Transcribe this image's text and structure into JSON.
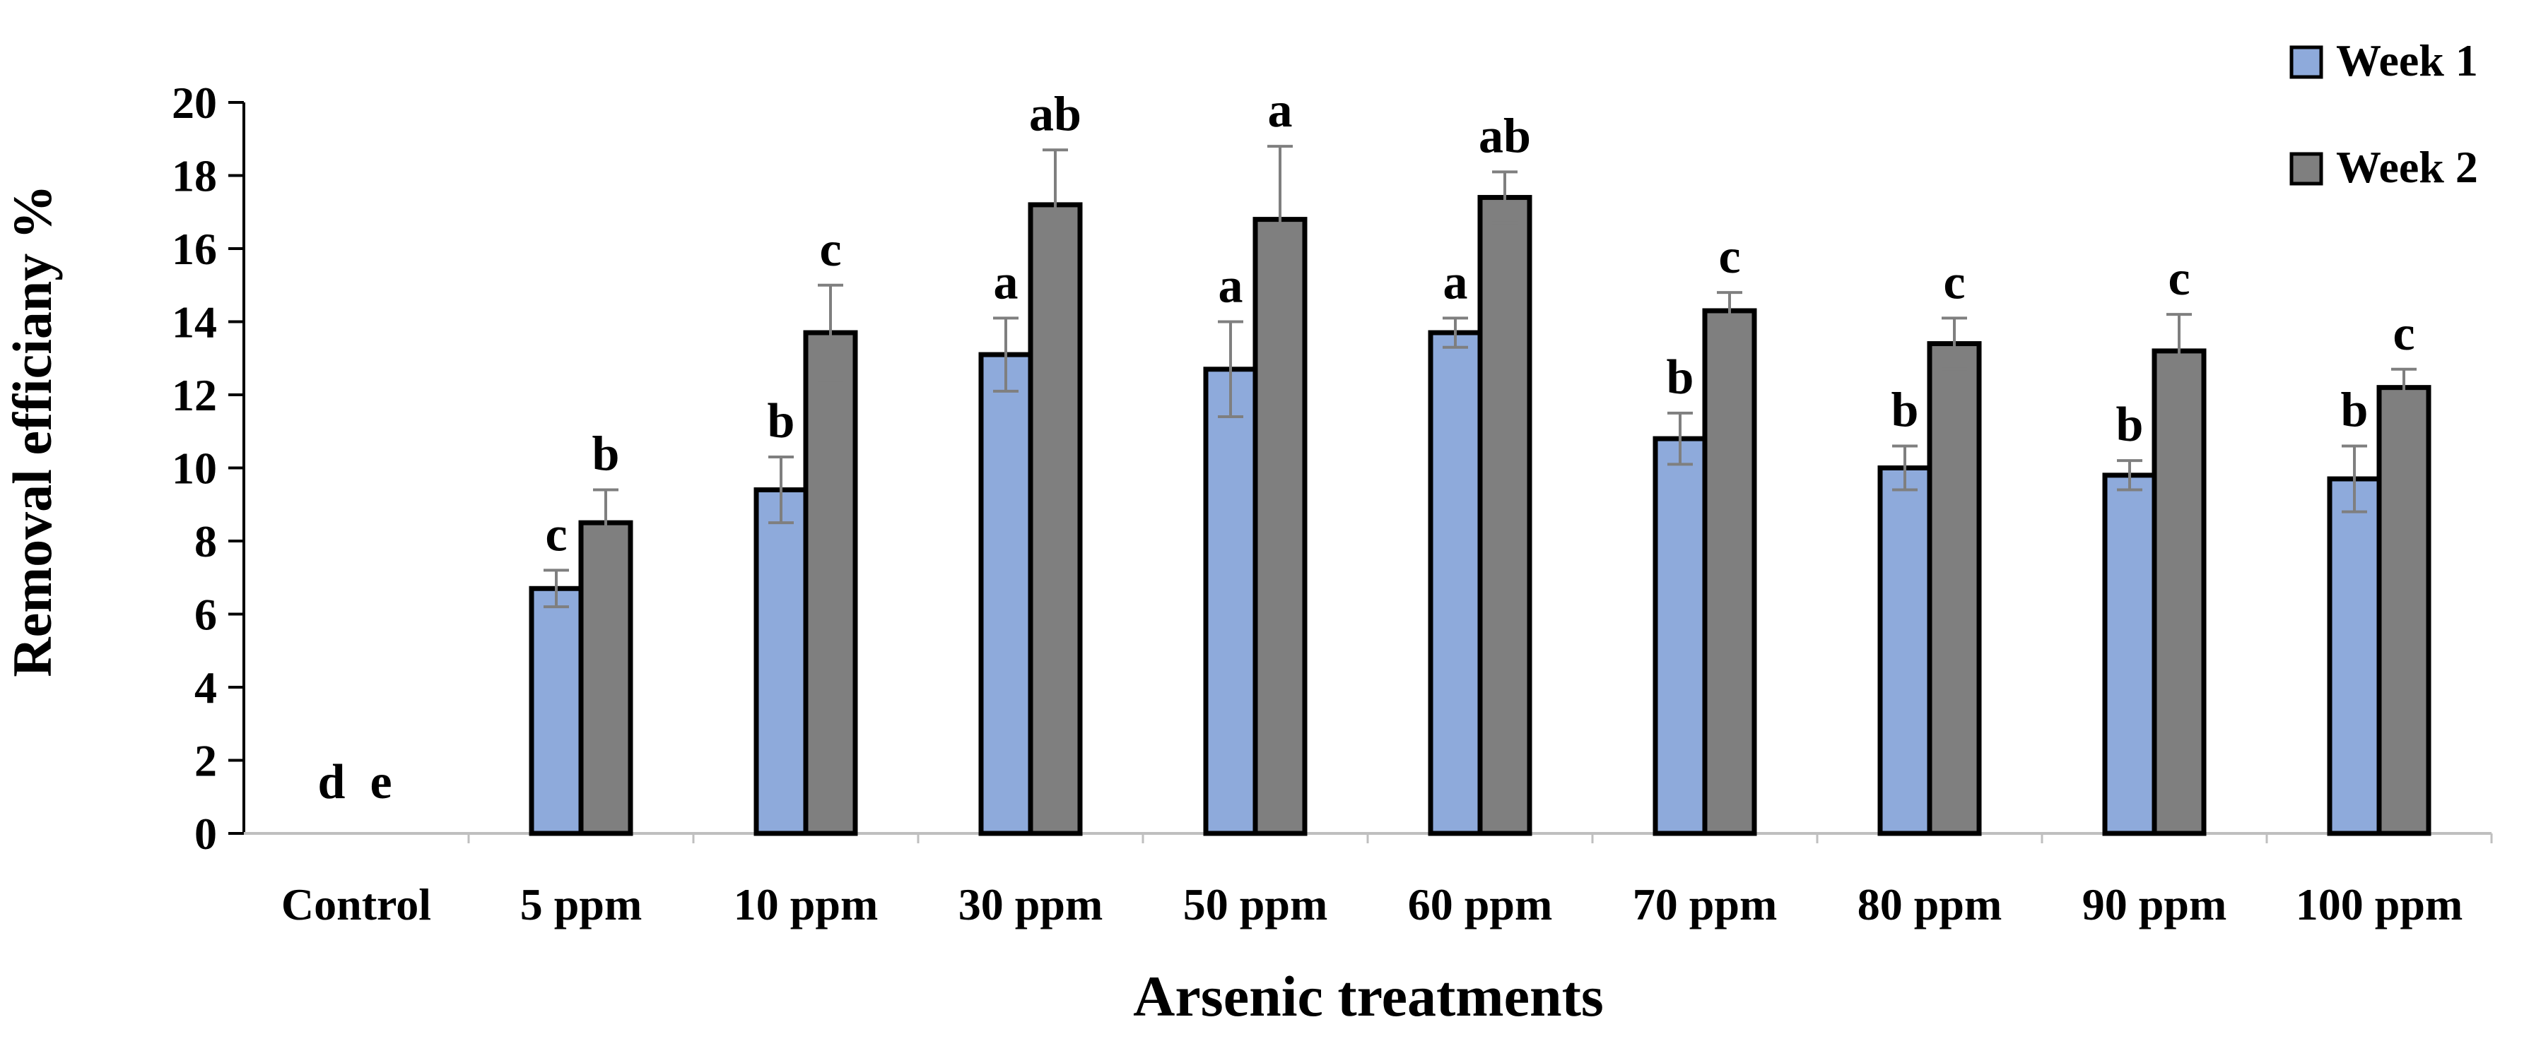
{
  "chart_data": {
    "type": "bar",
    "title": "",
    "xlabel": "Arsenic treatments",
    "ylabel": "Removal efficiany %",
    "ylim": [
      0,
      20
    ],
    "yticks": [
      0,
      2,
      4,
      6,
      8,
      10,
      12,
      14,
      16,
      18,
      20
    ],
    "grid": false,
    "legend_position": "top-right",
    "categories": [
      "Control",
      "5 ppm",
      "10 ppm",
      "30 ppm",
      "50 ppm",
      "60 ppm",
      "70 ppm",
      "80 ppm",
      "90 ppm",
      "100 ppm"
    ],
    "series": [
      {
        "name": "Week 1",
        "color": "#8eaadb",
        "values": [
          0,
          6.7,
          9.4,
          13.1,
          12.7,
          13.7,
          10.8,
          10.0,
          9.8,
          9.7
        ],
        "errors": [
          0,
          0.5,
          0.9,
          1.0,
          1.3,
          0.4,
          0.7,
          0.6,
          0.4,
          0.9
        ],
        "labels": [
          "d",
          "c",
          "b",
          "a",
          "a",
          "a",
          "b",
          "b",
          "b",
          "b"
        ]
      },
      {
        "name": "Week 2",
        "color": "#7f7f7f",
        "values": [
          0,
          8.5,
          13.7,
          17.2,
          16.8,
          17.4,
          14.3,
          13.4,
          13.2,
          12.2
        ],
        "errors": [
          0,
          0.9,
          1.3,
          1.5,
          2.0,
          0.7,
          0.5,
          0.7,
          1.0,
          0.5
        ],
        "labels": [
          "e",
          "b",
          "c",
          "ab",
          "a",
          "ab",
          "c",
          "c",
          "c",
          "c"
        ]
      }
    ]
  }
}
